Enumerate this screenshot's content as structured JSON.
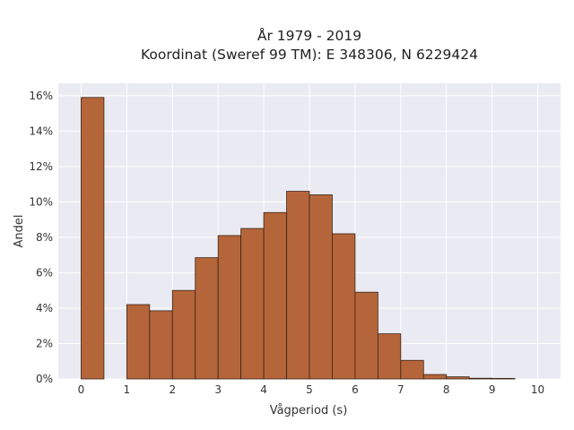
{
  "chart_data": {
    "type": "bar",
    "title_line1": "År 1979 - 2019",
    "title_line2": "Koordinat (Sweref 99 TM): E 348306, N 6229424",
    "xlabel": "Vågperiod (s)",
    "ylabel": "Andel",
    "bin_width": 0.5,
    "bin_starts": [
      0,
      0.5,
      1,
      1.5,
      2,
      2.5,
      3,
      3.5,
      4,
      4.5,
      5,
      5.5,
      6,
      6.5,
      7,
      7.5,
      8,
      8.5,
      9,
      9.5
    ],
    "values": [
      15.9,
      0.0,
      4.2,
      3.85,
      5.0,
      6.85,
      8.1,
      8.5,
      9.4,
      10.6,
      10.4,
      8.2,
      4.9,
      2.55,
      1.05,
      0.25,
      0.12,
      0.04,
      0.03,
      0.0
    ],
    "xlim": [
      -0.5,
      10.5
    ],
    "ylim": [
      0,
      16.7
    ],
    "x_ticks": [
      0,
      1,
      2,
      3,
      4,
      5,
      6,
      7,
      8,
      9,
      10
    ],
    "x_tick_labels": [
      "0",
      "1",
      "2",
      "3",
      "4",
      "5",
      "6",
      "7",
      "8",
      "9",
      "10"
    ],
    "y_ticks": [
      0,
      2,
      4,
      6,
      8,
      10,
      12,
      14,
      16
    ],
    "y_tick_labels": [
      "0%",
      "2%",
      "4%",
      "6%",
      "8%",
      "10%",
      "12%",
      "14%",
      "16%"
    ],
    "grid": true,
    "colors": {
      "bar_fill": "#b5653a",
      "bar_edge": "#3a2418",
      "plot_bg": "#eaeaf2",
      "grid": "#ffffff"
    }
  }
}
